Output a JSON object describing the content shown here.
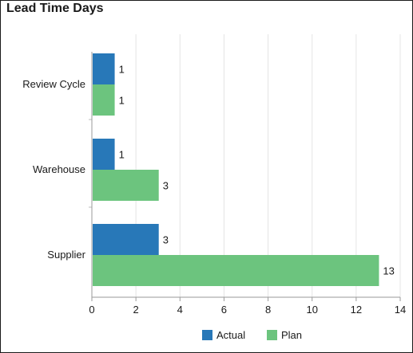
{
  "header": {
    "title": "Lead Time Days"
  },
  "chart_data": {
    "type": "bar",
    "orientation": "horizontal",
    "title": "Lead Time Days",
    "xlabel": "",
    "ylabel": "",
    "categories": [
      "Review Cycle",
      "Warehouse",
      "Supplier"
    ],
    "series": [
      {
        "name": "Actual",
        "values": [
          1,
          1,
          3
        ],
        "color": "#2878b8"
      },
      {
        "name": "Plan",
        "values": [
          1,
          3,
          13
        ],
        "color": "#6cc47e"
      }
    ],
    "xlim": [
      0,
      14
    ],
    "x_ticks": [
      0,
      2,
      4,
      6,
      8,
      10,
      12,
      14
    ],
    "grid": true,
    "legend": "bottom-center",
    "data_labels": true
  }
}
